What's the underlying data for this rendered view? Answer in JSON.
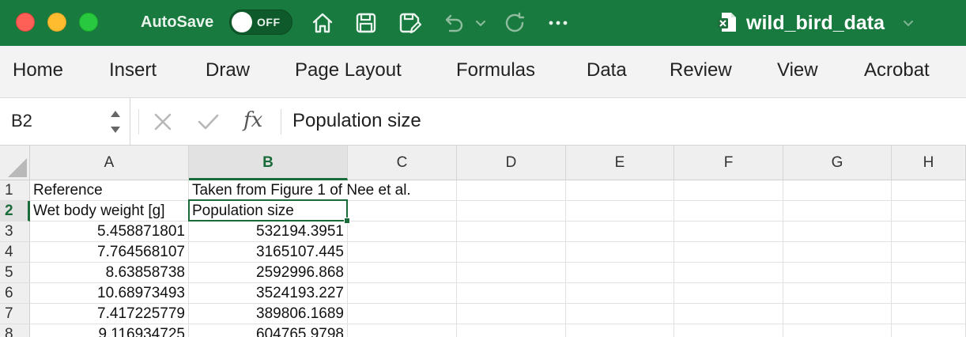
{
  "titlebar": {
    "autosave_label": "AutoSave",
    "autosave_state": "OFF",
    "document_title": "wild_bird_data",
    "icons": [
      "home-icon",
      "save-icon",
      "save-as-icon",
      "undo-icon",
      "undo-dropdown-icon",
      "redo-icon",
      "more-icon",
      "excel-file-icon",
      "chevron-down-icon"
    ],
    "background_color": "#187a3e"
  },
  "ribbon": {
    "tabs": [
      "Home",
      "Insert",
      "Draw",
      "Page Layout",
      "Formulas",
      "Data",
      "Review",
      "View",
      "Acrobat"
    ]
  },
  "formula_bar": {
    "name_box": "B2",
    "fx_label": "fx",
    "value": "Population size"
  },
  "sheet": {
    "columns": [
      "A",
      "B",
      "C",
      "D",
      "E",
      "F",
      "G",
      "H"
    ],
    "selected_column": "B",
    "selected_row": "2",
    "rows": [
      {
        "num": "1",
        "a": "Reference",
        "b": "Taken from Figure 1 of Nee et al."
      },
      {
        "num": "2",
        "a": "Wet body weight [g]",
        "b": "Population size"
      },
      {
        "num": "3",
        "a": "5.458871801",
        "b": "532194.3951"
      },
      {
        "num": "4",
        "a": "7.764568107",
        "b": "3165107.445"
      },
      {
        "num": "5",
        "a": "8.63858738",
        "b": "2592996.868"
      },
      {
        "num": "6",
        "a": "10.68973493",
        "b": "3524193.227"
      },
      {
        "num": "7",
        "a": "7.417225779",
        "b": "389806.1689"
      },
      {
        "num": "8",
        "a": "9.116934725",
        "b": "604765.9798"
      }
    ]
  },
  "accent_color": "#1a6b3a"
}
